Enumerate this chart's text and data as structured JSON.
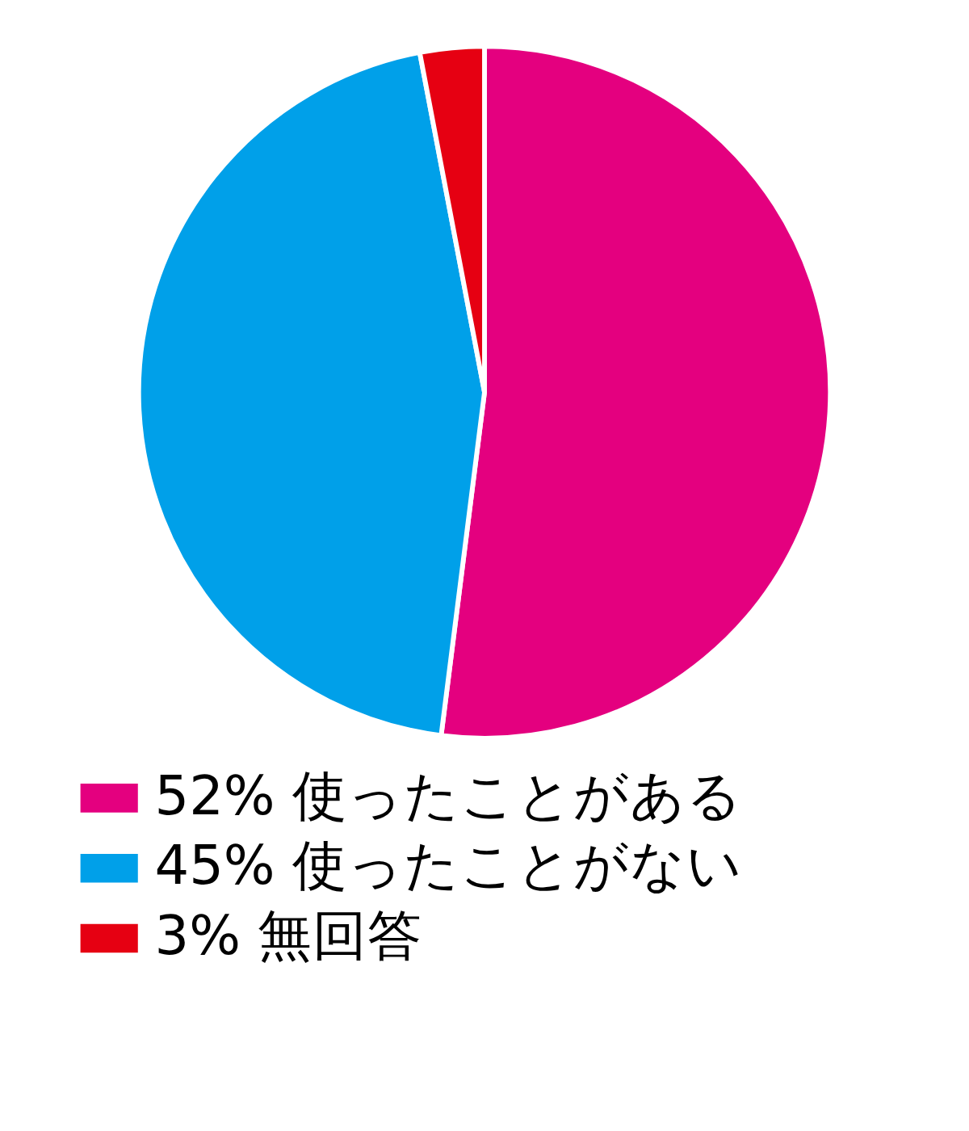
{
  "chart_data": {
    "type": "pie",
    "categories": [
      "使ったことがある",
      "使ったことがない",
      "無回答"
    ],
    "values": [
      52,
      45,
      3
    ],
    "value_labels": [
      "52%",
      "45%",
      "3%"
    ],
    "colors": [
      "#e4007f",
      "#00a0e9",
      "#e60012"
    ],
    "legend": "bottom"
  }
}
